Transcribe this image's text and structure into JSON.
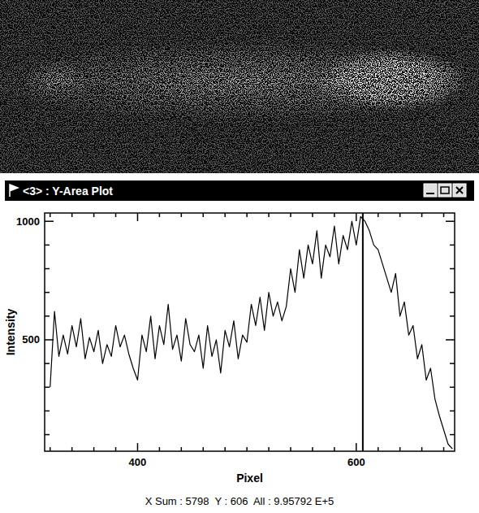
{
  "chart_data": {
    "type": "line",
    "title": "<3> : Y-Area Plot",
    "x_label": "Pixel",
    "y_label": "Intensity",
    "annotation": "X Sum : 5798  Y : 606  All : 9.95792 E+5",
    "cursor_x": 606,
    "color": "#000000",
    "xlim": [
      315,
      690
    ],
    "ylim": [
      30,
      1035
    ],
    "xticks": [
      400,
      600
    ],
    "yticks": [
      500,
      1000
    ],
    "grid": false,
    "x": [
      320,
      324,
      328,
      332,
      336,
      340,
      344,
      348,
      352,
      356,
      360,
      364,
      368,
      372,
      376,
      380,
      384,
      388,
      392,
      396,
      400,
      404,
      408,
      412,
      416,
      420,
      424,
      428,
      432,
      436,
      440,
      444,
      448,
      452,
      456,
      460,
      464,
      468,
      472,
      476,
      480,
      484,
      488,
      492,
      496,
      500,
      504,
      508,
      512,
      516,
      520,
      524,
      528,
      532,
      536,
      540,
      544,
      548,
      552,
      556,
      560,
      564,
      568,
      572,
      576,
      580,
      584,
      588,
      592,
      596,
      600,
      604,
      608,
      612,
      616,
      620,
      624,
      628,
      632,
      636,
      640,
      644,
      648,
      652,
      656,
      660,
      664,
      668,
      672,
      676,
      680,
      684,
      688
    ],
    "values": [
      300,
      620,
      430,
      520,
      440,
      560,
      470,
      590,
      420,
      510,
      450,
      540,
      400,
      480,
      430,
      560,
      470,
      520,
      440,
      380,
      330,
      520,
      450,
      600,
      420,
      560,
      480,
      650,
      460,
      520,
      410,
      590,
      480,
      450,
      520,
      380,
      560,
      430,
      500,
      360,
      540,
      470,
      580,
      420,
      520,
      490,
      650,
      560,
      680,
      540,
      700,
      600,
      660,
      580,
      640,
      800,
      700,
      880,
      760,
      900,
      820,
      960,
      760,
      900,
      850,
      980,
      820,
      940,
      880,
      1000,
      900,
      1020,
      1000,
      960,
      900,
      880,
      820,
      760,
      700,
      780,
      600,
      660,
      520,
      560,
      420,
      480,
      330,
      380,
      250,
      180,
      120,
      60,
      40
    ]
  }
}
